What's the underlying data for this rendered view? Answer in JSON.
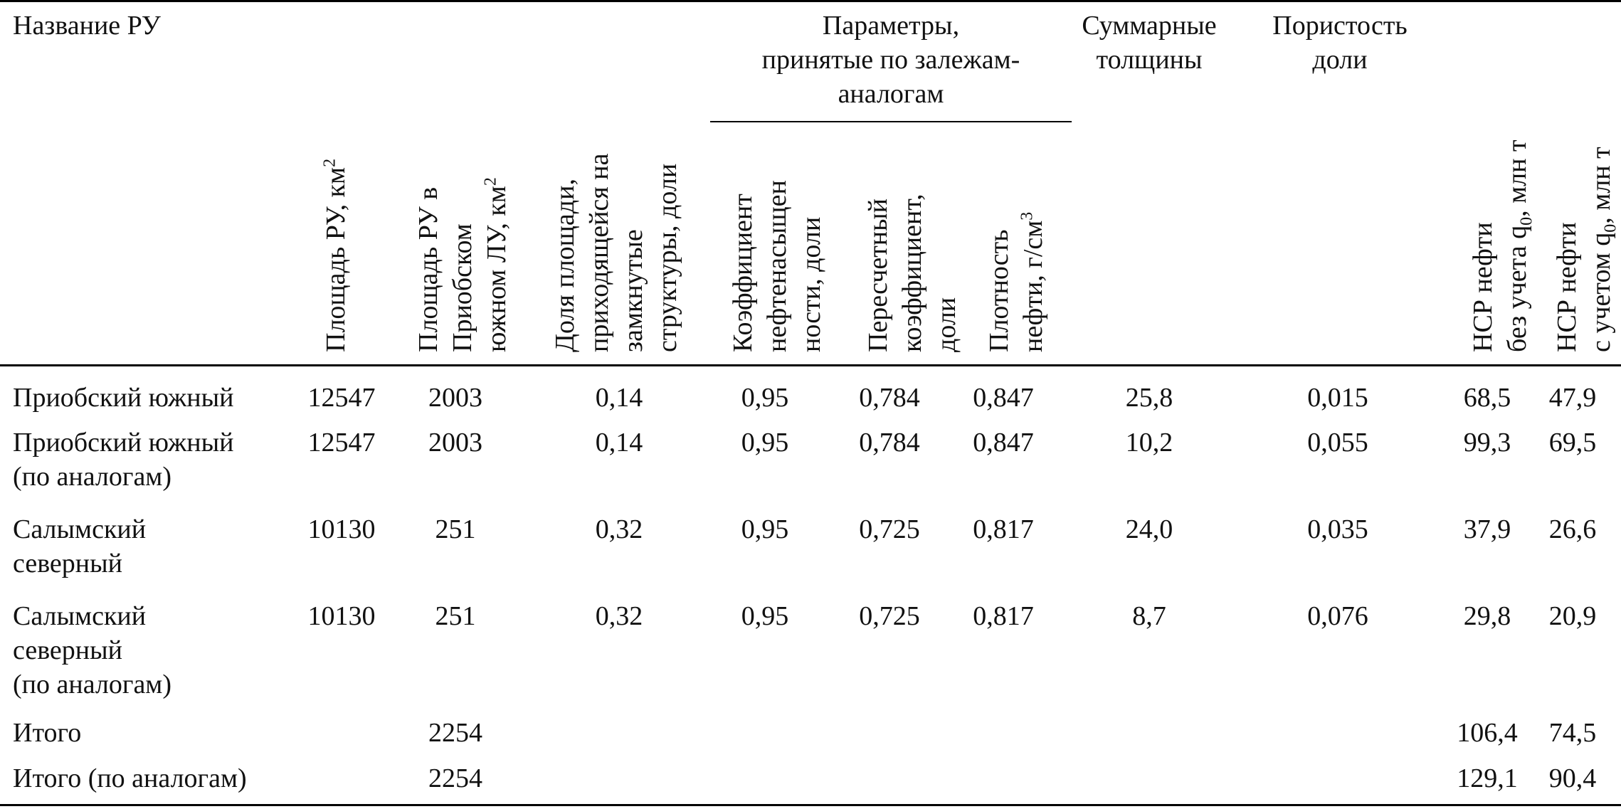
{
  "header": {
    "name": "Название РУ",
    "area_ru": "Площадь РУ, км",
    "area_ru_sup": "2",
    "area_in_lu": [
      "Площадь РУ в",
      "Приобском",
      "южном ЛУ, км"
    ],
    "area_in_lu_sup": "2",
    "share": [
      "Доля площади,",
      "приходящейся на",
      "замкнутые",
      "структуры, доли"
    ],
    "group": [
      "Параметры,",
      "принятые по залежам-",
      "аналогам"
    ],
    "saturation": [
      "Коэффициент",
      "нефтенасыщен",
      "ности, доли"
    ],
    "conversion": [
      "Пересчетный",
      "коэффициент,",
      "доли"
    ],
    "density": [
      "Плотность",
      "нефти, г/см"
    ],
    "density_sup": "3",
    "thickness": [
      "Суммарные",
      "толщины"
    ],
    "porosity": [
      "Пористость",
      "доли"
    ],
    "nsr_without": [
      "НСР нефти",
      "без учета q",
      ", млн т"
    ],
    "nsr_with": [
      "НСР нефти",
      "с учетом q",
      ", млн т"
    ],
    "q_sub": "0"
  },
  "rows": [
    {
      "name": [
        "Приобский южный"
      ],
      "area": "12547",
      "area_lu": "2003",
      "share": "0,14",
      "kn": "0,95",
      "kp": "0,784",
      "rho": "0,847",
      "h": "25,8",
      "m": "0,015",
      "nsr1": "68,5",
      "nsr2": "47,9"
    },
    {
      "name": [
        "Приобский южный",
        "(по аналогам)"
      ],
      "area": "12547",
      "area_lu": "2003",
      "share": "0,14",
      "kn": "0,95",
      "kp": "0,784",
      "rho": "0,847",
      "h": "10,2",
      "m": "0,055",
      "nsr1": "99,3",
      "nsr2": "69,5"
    },
    {
      "name": [
        "Салымский",
        "северный"
      ],
      "area": "10130",
      "area_lu": "251",
      "share": "0,32",
      "kn": "0,95",
      "kp": "0,725",
      "rho": "0,817",
      "h": "24,0",
      "m": "0,035",
      "nsr1": "37,9",
      "nsr2": "26,6"
    },
    {
      "name": [
        "Салымский",
        "северный",
        "(по аналогам)"
      ],
      "area": "10130",
      "area_lu": "251",
      "share": "0,32",
      "kn": "0,95",
      "kp": "0,725",
      "rho": "0,817",
      "h": "8,7",
      "m": "0,076",
      "nsr1": "29,8",
      "nsr2": "20,9"
    },
    {
      "name": [
        "Итого"
      ],
      "area": "",
      "area_lu": "2254",
      "share": "",
      "kn": "",
      "kp": "",
      "rho": "",
      "h": "",
      "m": "",
      "nsr1": "106,4",
      "nsr2": "74,5"
    },
    {
      "name": [
        "Итого (по аналогам)"
      ],
      "area": "",
      "area_lu": "2254",
      "share": "",
      "kn": "",
      "kp": "",
      "rho": "",
      "h": "",
      "m": "",
      "nsr1": "129,1",
      "nsr2": "90,4"
    }
  ]
}
